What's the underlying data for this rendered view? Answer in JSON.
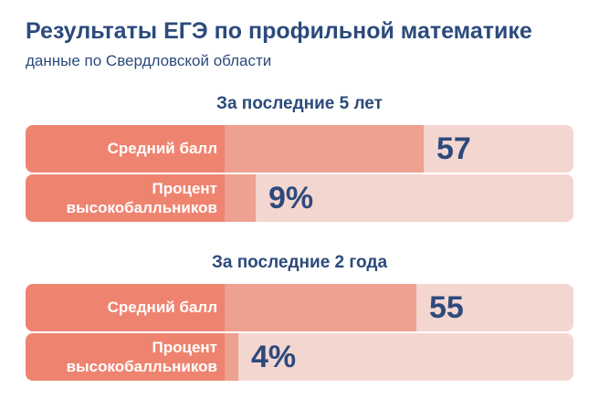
{
  "title": "Результаты ЕГЭ по профильной математике",
  "subtitle": "данные по Свердловской области",
  "chart_data": {
    "type": "bar",
    "groups": [
      {
        "title": "За последние 5 лет",
        "rows": [
          {
            "label": "Средний балл",
            "value": 57,
            "display": "57",
            "max": 100
          },
          {
            "label": "Процент высокобалльников",
            "value": 9,
            "display": "9%",
            "max": 100
          }
        ]
      },
      {
        "title": "За последние 2 года",
        "rows": [
          {
            "label": "Средний балл",
            "value": 55,
            "display": "55",
            "max": 100
          },
          {
            "label": "Процент высокобалльников",
            "value": 4,
            "display": "4%",
            "max": 100
          }
        ]
      }
    ],
    "colors": {
      "label_bg": "#ee8470",
      "bar_fill": "#eea091",
      "track": "#f4d6d0",
      "text": "#2c4a7c"
    }
  }
}
